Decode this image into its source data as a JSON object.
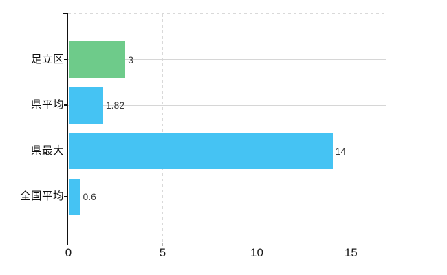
{
  "chart_data": {
    "type": "bar",
    "orientation": "horizontal",
    "title": "",
    "xlabel": "",
    "ylabel": "",
    "categories": [
      "足立区",
      "県平均",
      "県最大",
      "全国平均"
    ],
    "values": [
      3,
      1.82,
      14,
      0.6
    ],
    "value_labels": [
      "3",
      "1.82",
      "14",
      "0.6"
    ],
    "bar_colors": [
      "#6ecb8a",
      "#45c3f3",
      "#45c3f3",
      "#45c3f3"
    ],
    "xlim": [
      0,
      16.9
    ],
    "x_ticks": [
      {
        "value": 0,
        "label": "0"
      },
      {
        "value": 5,
        "label": "5"
      },
      {
        "value": 10,
        "label": "10"
      },
      {
        "value": 15,
        "label": "15"
      }
    ],
    "legend": "none",
    "grid": {
      "horizontal_lines": "solid, one per category",
      "vertical_lines": "dashed at each x tick",
      "top_border": "dashed"
    }
  },
  "colors": {
    "background": "#ffffff",
    "bar_green": "#6ecb8a",
    "bar_blue": "#45c3f3",
    "axis": "#111111",
    "solid_gridline": "#d6d6d6",
    "dashed_gridline": "#d9d9d9",
    "minor_tick": "#b0b0b0",
    "category_label_text": "#111111",
    "tick_label_text": "#1a1a1a",
    "value_label_text": "#3a3a3a"
  }
}
